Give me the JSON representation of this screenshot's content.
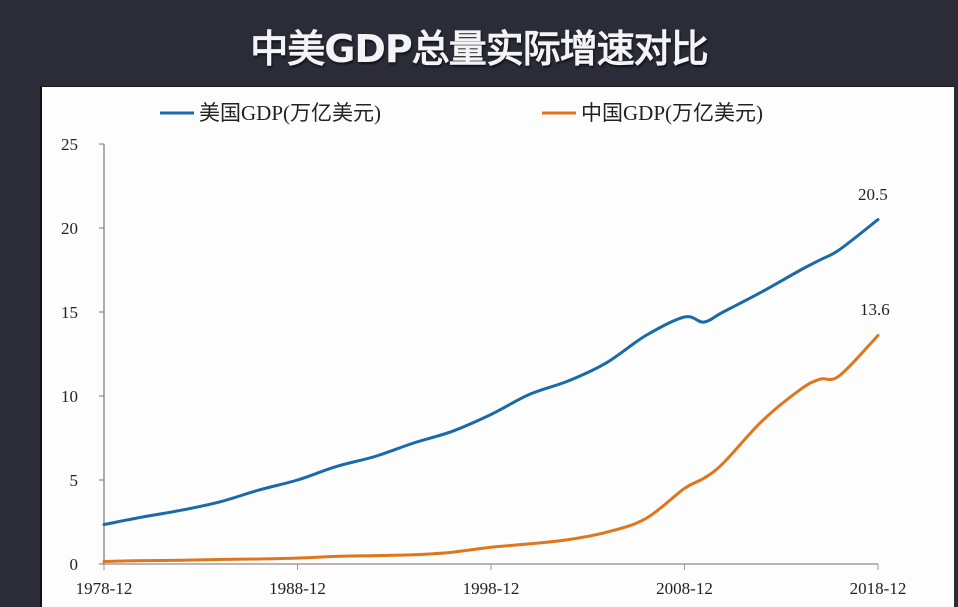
{
  "page": {
    "title": "中美GDP总量实际增速对比",
    "background_color": "#2b2c37"
  },
  "legend": {
    "items": [
      {
        "label": "美国GDP(万亿美元)",
        "color": "#1a6aa8"
      },
      {
        "label": "中国GDP(万亿美元)",
        "color": "#e0761c"
      }
    ]
  },
  "annotations": {
    "us_end": "20.5",
    "china_end": "13.6"
  },
  "axes": {
    "y_ticks": [
      "0",
      "5",
      "10",
      "15",
      "20",
      "25"
    ],
    "x_ticks": [
      "1978-12",
      "1988-12",
      "1998-12",
      "2008-12",
      "2018-12"
    ]
  },
  "chart_data": {
    "type": "line",
    "title": "中美GDP总量实际增速对比",
    "xlabel": "",
    "ylabel": "",
    "ylim": [
      0,
      25
    ],
    "xlim": [
      "1978-12",
      "2018-12"
    ],
    "grid": false,
    "legend_position": "top",
    "x_tick_labels": [
      "1978-12",
      "1988-12",
      "1998-12",
      "2008-12",
      "2018-12"
    ],
    "y_tick_labels": [
      0,
      5,
      10,
      15,
      20,
      25
    ],
    "x": [
      1978,
      1980,
      1982,
      1984,
      1986,
      1988,
      1990,
      1992,
      1994,
      1996,
      1998,
      2000,
      2002,
      2004,
      2006,
      2008,
      2009,
      2010,
      2012,
      2014,
      2015,
      2016,
      2018
    ],
    "series": [
      {
        "name": "美国GDP(万亿美元)",
        "color": "#1a6aa8",
        "values": [
          2.35,
          2.8,
          3.2,
          3.7,
          4.4,
          5.0,
          5.8,
          6.4,
          7.2,
          7.9,
          8.9,
          10.1,
          10.9,
          12.0,
          13.6,
          14.7,
          14.4,
          15.0,
          16.2,
          17.5,
          18.1,
          18.7,
          20.5
        ]
      },
      {
        "name": "中国GDP(万亿美元)",
        "color": "#e0761c",
        "values": [
          0.15,
          0.2,
          0.22,
          0.27,
          0.3,
          0.35,
          0.45,
          0.5,
          0.55,
          0.7,
          1.0,
          1.2,
          1.45,
          1.9,
          2.7,
          4.5,
          5.1,
          6.0,
          8.5,
          10.4,
          11.0,
          11.2,
          13.6
        ]
      }
    ],
    "annotations": [
      {
        "text": "20.5",
        "x": 2018,
        "y": 20.5
      },
      {
        "text": "13.6",
        "x": 2018,
        "y": 13.6
      }
    ]
  }
}
